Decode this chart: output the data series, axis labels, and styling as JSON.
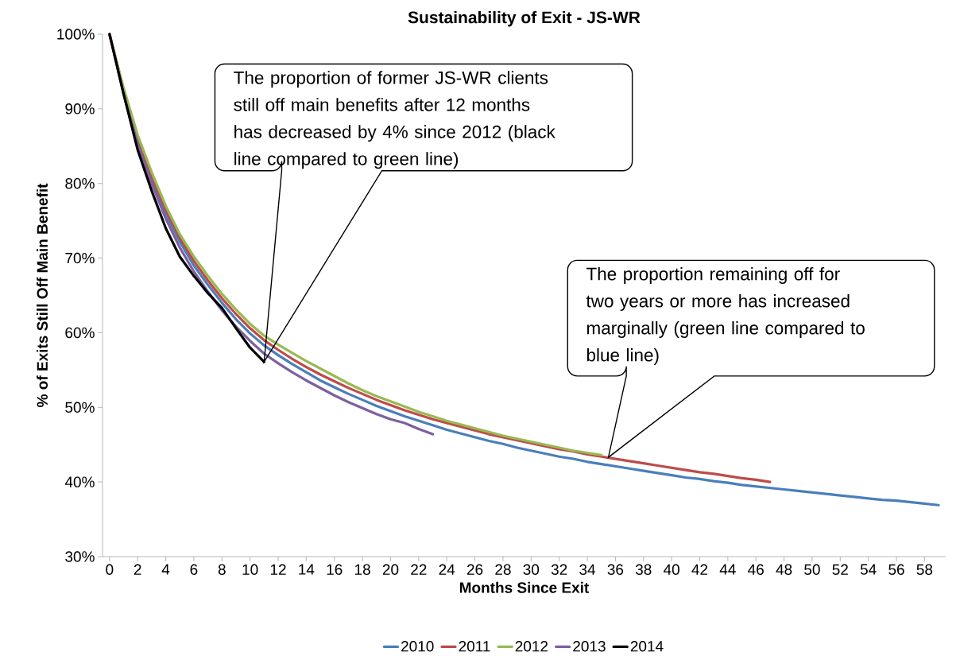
{
  "chart_data": {
    "type": "line",
    "title": "Sustainability of Exit - JS-WR",
    "xlabel": "Months Since Exit",
    "ylabel": "% of Exits Still Off Main Benefit",
    "xlim": [
      -0.5,
      59.5
    ],
    "xticks": [
      0,
      2,
      4,
      6,
      8,
      10,
      12,
      14,
      16,
      18,
      20,
      22,
      24,
      26,
      28,
      30,
      32,
      34,
      36,
      38,
      40,
      42,
      44,
      46,
      48,
      50,
      52,
      54,
      56,
      58
    ],
    "ylim": [
      30,
      100
    ],
    "yticks": [
      {
        "value": 30,
        "label": "30%"
      },
      {
        "value": 40,
        "label": "40%"
      },
      {
        "value": 50,
        "label": "50%"
      },
      {
        "value": 60,
        "label": "60%"
      },
      {
        "value": 70,
        "label": "70%"
      },
      {
        "value": 80,
        "label": "80%"
      },
      {
        "value": 90,
        "label": "90%"
      },
      {
        "value": 100,
        "label": "100%"
      }
    ],
    "grid": false,
    "legend": "bottom",
    "marker": "none",
    "line_style": "solid",
    "series": [
      {
        "name": "2010",
        "color": "#4a7ebb",
        "x": [
          2,
          3,
          4,
          5,
          6,
          7,
          8,
          9,
          10,
          11,
          12,
          13,
          14,
          15,
          16,
          17,
          18,
          19,
          20,
          21,
          22,
          23,
          24,
          25,
          26,
          27,
          28,
          29,
          30,
          31,
          32,
          33,
          34,
          35,
          36,
          37,
          38,
          39,
          40,
          41,
          42,
          43,
          44,
          45,
          46,
          47,
          48,
          49,
          50,
          51,
          52,
          53,
          54,
          55,
          56,
          57,
          58,
          59
        ],
        "values": [
          85.6,
          80.5,
          76,
          72.2,
          69,
          66.4,
          64,
          61.8,
          59.9,
          58.3,
          57,
          55.8,
          54.7,
          53.6,
          52.7,
          51.8,
          51,
          50.2,
          49.5,
          48.8,
          48.2,
          47.6,
          47,
          46.5,
          46,
          45.5,
          45.1,
          44.6,
          44.2,
          43.8,
          43.4,
          43.1,
          42.7,
          42.4,
          42.1,
          41.8,
          41.5,
          41.2,
          40.9,
          40.6,
          40.4,
          40.1,
          39.9,
          39.6,
          39.4,
          39.2,
          39,
          38.8,
          38.6,
          38.4,
          38.2,
          38,
          37.8,
          37.6,
          37.5,
          37.3,
          37.1,
          36.9
        ]
      },
      {
        "name": "2011",
        "color": "#be4b48",
        "x": [
          0,
          1,
          2,
          3,
          4,
          5,
          6,
          7,
          8,
          9,
          10,
          11,
          12,
          13,
          14,
          15,
          16,
          17,
          18,
          19,
          20,
          21,
          22,
          23,
          24,
          25,
          26,
          27,
          28,
          29,
          30,
          31,
          32,
          33,
          34,
          35,
          36,
          37,
          38,
          39,
          40,
          41,
          42,
          43,
          44,
          45,
          46,
          47
        ],
        "values": [
          100,
          92.5,
          86,
          81,
          76.5,
          72.7,
          69.6,
          67,
          64.6,
          62.5,
          60.6,
          59,
          57.7,
          56.5,
          55.4,
          54.4,
          53.5,
          52.6,
          51.8,
          51,
          50.3,
          49.6,
          49,
          48.4,
          47.9,
          47.4,
          46.9,
          46.4,
          46,
          45.6,
          45.2,
          44.8,
          44.4,
          44.1,
          43.7,
          43.4,
          43.1,
          42.8,
          42.5,
          42.2,
          41.9,
          41.6,
          41.3,
          41.1,
          40.8,
          40.5,
          40.3,
          40
        ]
      },
      {
        "name": "2012",
        "color": "#98b954",
        "x": [
          0,
          1,
          2,
          3,
          4,
          5,
          6,
          7,
          8,
          9,
          10,
          11,
          12,
          13,
          14,
          15,
          16,
          17,
          18,
          19,
          20,
          21,
          22,
          23,
          24,
          25,
          26,
          27,
          28,
          29,
          30,
          31,
          32,
          33,
          34,
          35
        ],
        "values": [
          100,
          92.8,
          86.5,
          81.5,
          77,
          73.2,
          70.2,
          67.6,
          65.2,
          63.1,
          61.2,
          59.6,
          58.4,
          57.3,
          56.2,
          55.2,
          54.2,
          53.2,
          52.3,
          51.5,
          50.8,
          50.1,
          49.4,
          48.8,
          48.2,
          47.7,
          47.2,
          46.7,
          46.2,
          45.8,
          45.4,
          45,
          44.6,
          44.2,
          43.9,
          43.6
        ]
      },
      {
        "name": "2013",
        "color": "#7d60a0",
        "x": [
          0,
          1,
          2,
          3,
          4,
          5,
          6,
          7,
          8,
          9,
          10,
          11,
          12,
          13,
          14,
          15,
          16,
          17,
          18,
          19,
          20,
          21,
          22,
          23
        ],
        "values": [
          100,
          92,
          85.3,
          80,
          75.3,
          71.4,
          68.2,
          65.5,
          63,
          60.8,
          58.9,
          57.2,
          55.9,
          54.7,
          53.6,
          52.6,
          51.6,
          50.7,
          49.9,
          49.1,
          48.4,
          47.9,
          47.1,
          46.4
        ]
      },
      {
        "name": "2014",
        "color": "#000000",
        "x": [
          0,
          1,
          2,
          3,
          4,
          5,
          6,
          7,
          8,
          9,
          10,
          11
        ],
        "values": [
          100,
          92,
          84.5,
          79,
          74,
          70.2,
          67.6,
          65.3,
          63.3,
          60.6,
          58,
          56.1
        ]
      }
    ],
    "annotations": [
      "The proportion of former JS-WR clients still off main benefits after 12 months has decreased by 4% since 2012 (black line compared to green line)",
      "The proportion remaining off for two years or more has increased marginally (green line compared to blue line)"
    ]
  }
}
